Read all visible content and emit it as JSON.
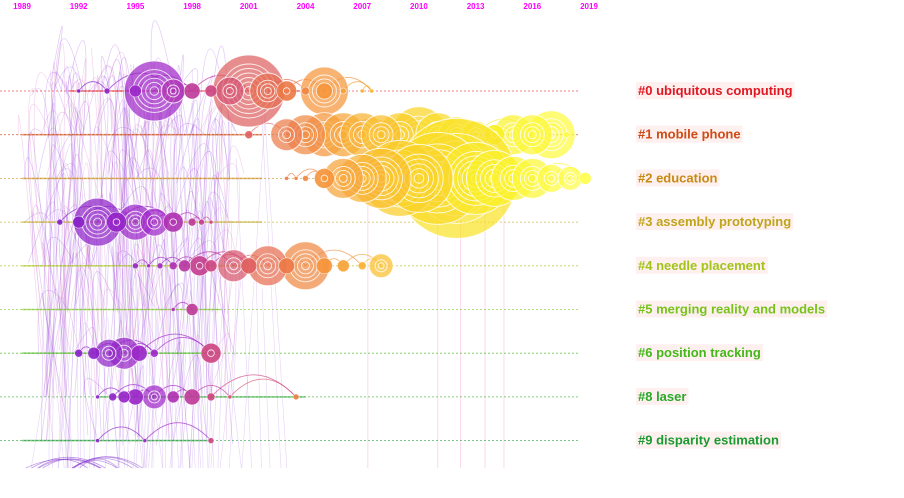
{
  "chart_data": {
    "type": "timeline",
    "x_axis": {
      "ticks": [
        "1989",
        "1992",
        "1995",
        "1998",
        "2001",
        "2004",
        "2007",
        "2010",
        "2013",
        "2016",
        "2019"
      ]
    },
    "clusters": [
      {
        "id": 0,
        "label": "#0 ubiquitous computing",
        "color": "#e01822",
        "span": [
          1991.5,
          2019
        ],
        "nodes": [
          [
            1992,
            2
          ],
          [
            1993.5,
            3
          ],
          [
            1995,
            6
          ],
          [
            1996,
            30
          ],
          [
            1997,
            12
          ],
          [
            1998,
            8
          ],
          [
            1999,
            6
          ],
          [
            2000,
            14
          ],
          [
            2001,
            36
          ],
          [
            2002,
            18
          ],
          [
            2003,
            10
          ],
          [
            2004,
            4
          ],
          [
            2005,
            8
          ],
          [
            2005,
            24
          ],
          [
            2006,
            3
          ],
          [
            2007,
            2
          ],
          [
            2007.5,
            2
          ]
        ]
      },
      {
        "id": 1,
        "label": "#1 mobile phone",
        "color": "#cf4a14",
        "span": [
          1989,
          2019
        ],
        "nodes": [
          [
            2001,
            4
          ],
          [
            2003,
            16
          ],
          [
            2004,
            20
          ],
          [
            2005,
            22
          ],
          [
            2006,
            22
          ],
          [
            2007,
            22
          ],
          [
            2008,
            20
          ],
          [
            2009,
            22
          ],
          [
            2010,
            28
          ],
          [
            2011,
            22
          ],
          [
            2012,
            18
          ],
          [
            2013,
            14
          ],
          [
            2014,
            10
          ],
          [
            2015,
            20
          ],
          [
            2016,
            20
          ],
          [
            2017,
            24
          ],
          [
            2017.8,
            3
          ]
        ]
      },
      {
        "id": 2,
        "label": "#2 education",
        "color": "#c88a10",
        "span": [
          1989,
          2019
        ],
        "nodes": [
          [
            2003,
            2
          ],
          [
            2003.5,
            2
          ],
          [
            2004,
            3
          ],
          [
            2005,
            10
          ],
          [
            2006,
            20
          ],
          [
            2007,
            24
          ],
          [
            2008,
            30
          ],
          [
            2009,
            38
          ],
          [
            2010,
            34
          ],
          [
            2011,
            46
          ],
          [
            2012,
            60
          ],
          [
            2013,
            36
          ],
          [
            2014,
            28
          ],
          [
            2015,
            22
          ],
          [
            2016,
            20
          ],
          [
            2017,
            14
          ],
          [
            2018,
            12
          ],
          [
            2018.8,
            6
          ]
        ]
      },
      {
        "id": 3,
        "label": "#3 assembly prototyping",
        "color": "#c0a41a",
        "span": [
          1989,
          2019
        ],
        "nodes": [
          [
            1991,
            3
          ],
          [
            1992,
            6
          ],
          [
            1993,
            24
          ],
          [
            1994,
            10
          ],
          [
            1995,
            18
          ],
          [
            1996,
            14
          ],
          [
            1997,
            10
          ],
          [
            1998,
            4
          ],
          [
            1998.5,
            3
          ],
          [
            1999,
            2
          ]
        ]
      },
      {
        "id": 4,
        "label": "#4 needle placement",
        "color": "#a2c41a",
        "span": [
          1989,
          2019
        ],
        "nodes": [
          [
            1995,
            3
          ],
          [
            1995.7,
            2
          ],
          [
            1996.3,
            3
          ],
          [
            1997,
            4
          ],
          [
            1997.6,
            6
          ],
          [
            1998.4,
            10
          ],
          [
            1999,
            6
          ],
          [
            2000.2,
            16
          ],
          [
            2001,
            8
          ],
          [
            2002,
            20
          ],
          [
            2003,
            8
          ],
          [
            2004,
            24
          ],
          [
            2005,
            8
          ],
          [
            2006,
            6
          ],
          [
            2007,
            4
          ],
          [
            2008,
            12
          ]
        ]
      },
      {
        "id": 5,
        "label": "#5 merging reality and models",
        "color": "#76c41a",
        "span": [
          1989,
          1999.5
        ],
        "nodes": [
          [
            1997,
            2
          ],
          [
            1998,
            6
          ]
        ]
      },
      {
        "id": 6,
        "label": "#6 position tracking",
        "color": "#44b81a",
        "span": [
          1989,
          1999.5
        ],
        "nodes": [
          [
            1992,
            4
          ],
          [
            1992.8,
            6
          ],
          [
            1993.6,
            14
          ],
          [
            1994.4,
            16
          ],
          [
            1995.2,
            8
          ],
          [
            1996,
            4
          ],
          [
            1999,
            10
          ]
        ]
      },
      {
        "id": 8,
        "label": "#8 laser",
        "color": "#2aa82a",
        "span": [
          1993,
          2004
        ],
        "nodes": [
          [
            1993,
            2
          ],
          [
            1993.8,
            4
          ],
          [
            1994.4,
            6
          ],
          [
            1995,
            8
          ],
          [
            1996,
            12
          ],
          [
            1997,
            6
          ],
          [
            1998,
            8
          ],
          [
            1999,
            4
          ],
          [
            2000,
            2
          ],
          [
            2003.5,
            3
          ]
        ]
      },
      {
        "id": 9,
        "label": "#9 disparity estimation",
        "color": "#1a9a30",
        "span": [
          1989,
          1999
        ],
        "nodes": [
          [
            1993,
            2
          ],
          [
            1995.5,
            2
          ],
          [
            1999,
            3
          ]
        ]
      }
    ],
    "grid": false,
    "legend": "right"
  }
}
